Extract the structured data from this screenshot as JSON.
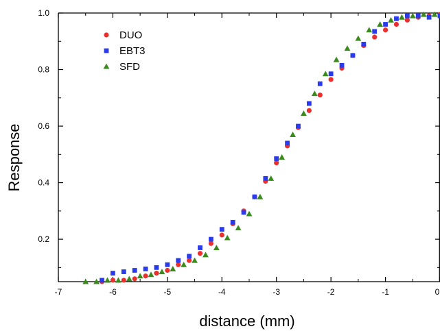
{
  "chart_data": {
    "type": "scatter",
    "xlabel": "distance (mm)",
    "ylabel": "Response",
    "xlim": [
      -7,
      0
    ],
    "ylim": [
      0.05,
      1.0
    ],
    "x_ticks": [
      {
        "value": -7,
        "label": "-7"
      },
      {
        "value": -6,
        "label": "-6"
      },
      {
        "value": -5,
        "label": "-5"
      },
      {
        "value": -4,
        "label": "-4"
      },
      {
        "value": -3,
        "label": "-3"
      },
      {
        "value": -2,
        "label": "-2"
      },
      {
        "value": -1,
        "label": "-1"
      },
      {
        "value": 0,
        "label": "0"
      }
    ],
    "y_ticks": [
      {
        "value": 0.2,
        "label": "0.2"
      },
      {
        "value": 0.4,
        "label": "0.4"
      },
      {
        "value": 0.6,
        "label": "0.6"
      },
      {
        "value": 0.8,
        "label": "0.8"
      },
      {
        "value": 1.0,
        "label": "1.0"
      }
    ],
    "grid": false,
    "legend_position": "top-left",
    "series": [
      {
        "name": "DUO",
        "marker": "circle",
        "color": "#e8312f",
        "points": [
          [
            -6.2,
            0.05
          ],
          [
            -6.0,
            0.055
          ],
          [
            -5.8,
            0.055
          ],
          [
            -5.6,
            0.06
          ],
          [
            -5.4,
            0.07
          ],
          [
            -5.2,
            0.08
          ],
          [
            -5.0,
            0.09
          ],
          [
            -4.8,
            0.11
          ],
          [
            -4.6,
            0.125
          ],
          [
            -4.4,
            0.15
          ],
          [
            -4.2,
            0.185
          ],
          [
            -4.0,
            0.215
          ],
          [
            -3.8,
            0.255
          ],
          [
            -3.6,
            0.3
          ],
          [
            -3.4,
            0.35
          ],
          [
            -3.2,
            0.405
          ],
          [
            -3.0,
            0.47
          ],
          [
            -2.8,
            0.53
          ],
          [
            -2.6,
            0.595
          ],
          [
            -2.4,
            0.655
          ],
          [
            -2.2,
            0.71
          ],
          [
            -2.0,
            0.765
          ],
          [
            -1.8,
            0.805
          ],
          [
            -1.6,
            0.85
          ],
          [
            -1.4,
            0.885
          ],
          [
            -1.2,
            0.915
          ],
          [
            -1.0,
            0.94
          ],
          [
            -0.8,
            0.96
          ],
          [
            -0.6,
            0.975
          ],
          [
            -0.4,
            0.985
          ],
          [
            -0.2,
            0.99
          ],
          [
            0.0,
            0.995
          ]
        ]
      },
      {
        "name": "EBT3",
        "marker": "square",
        "color": "#2a3bea",
        "points": [
          [
            -6.2,
            0.055
          ],
          [
            -6.0,
            0.08
          ],
          [
            -5.8,
            0.085
          ],
          [
            -5.6,
            0.09
          ],
          [
            -5.4,
            0.095
          ],
          [
            -5.2,
            0.1
          ],
          [
            -5.0,
            0.11
          ],
          [
            -4.8,
            0.125
          ],
          [
            -4.6,
            0.14
          ],
          [
            -4.4,
            0.17
          ],
          [
            -4.2,
            0.2
          ],
          [
            -4.0,
            0.235
          ],
          [
            -3.8,
            0.26
          ],
          [
            -3.6,
            0.295
          ],
          [
            -3.4,
            0.35
          ],
          [
            -3.2,
            0.415
          ],
          [
            -3.0,
            0.485
          ],
          [
            -2.8,
            0.54
          ],
          [
            -2.6,
            0.6
          ],
          [
            -2.4,
            0.68
          ],
          [
            -2.2,
            0.75
          ],
          [
            -2.0,
            0.785
          ],
          [
            -1.8,
            0.815
          ],
          [
            -1.6,
            0.85
          ],
          [
            -1.4,
            0.89
          ],
          [
            -1.2,
            0.935
          ],
          [
            -1.0,
            0.96
          ],
          [
            -0.8,
            0.98
          ],
          [
            -0.6,
            0.99
          ],
          [
            -0.4,
            0.99
          ],
          [
            -0.2,
            0.985
          ],
          [
            0.0,
            0.99
          ]
        ]
      },
      {
        "name": "SFD",
        "marker": "triangle",
        "color": "#3b8a1e",
        "points": [
          [
            -6.5,
            0.05
          ],
          [
            -6.3,
            0.05
          ],
          [
            -6.1,
            0.055
          ],
          [
            -5.9,
            0.055
          ],
          [
            -5.7,
            0.06
          ],
          [
            -5.5,
            0.07
          ],
          [
            -5.3,
            0.075
          ],
          [
            -5.1,
            0.085
          ],
          [
            -4.9,
            0.095
          ],
          [
            -4.7,
            0.11
          ],
          [
            -4.5,
            0.125
          ],
          [
            -4.3,
            0.145
          ],
          [
            -4.1,
            0.17
          ],
          [
            -3.9,
            0.205
          ],
          [
            -3.7,
            0.24
          ],
          [
            -3.5,
            0.29
          ],
          [
            -3.3,
            0.35
          ],
          [
            -3.1,
            0.415
          ],
          [
            -2.9,
            0.49
          ],
          [
            -2.7,
            0.57
          ],
          [
            -2.5,
            0.645
          ],
          [
            -2.3,
            0.715
          ],
          [
            -2.1,
            0.785
          ],
          [
            -1.9,
            0.835
          ],
          [
            -1.7,
            0.875
          ],
          [
            -1.5,
            0.91
          ],
          [
            -1.3,
            0.94
          ],
          [
            -1.1,
            0.96
          ],
          [
            -0.9,
            0.975
          ],
          [
            -0.7,
            0.985
          ],
          [
            -0.5,
            0.99
          ],
          [
            -0.3,
            0.995
          ],
          [
            -0.1,
            0.995
          ]
        ]
      }
    ]
  }
}
